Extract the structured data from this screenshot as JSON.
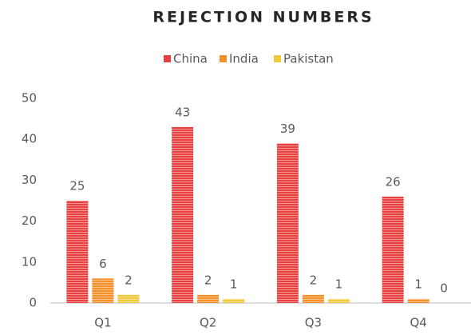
{
  "chart_data": {
    "type": "bar",
    "title": "REJECTION NUMBERS",
    "categories": [
      "Q1",
      "Q2",
      "Q3",
      "Q4"
    ],
    "series": [
      {
        "name": "China",
        "color": "#e8413f",
        "values": [
          25,
          43,
          39,
          26
        ]
      },
      {
        "name": "India",
        "color": "#f5902a",
        "values": [
          6,
          2,
          2,
          1
        ]
      },
      {
        "name": "Pakistan",
        "color": "#f0c93a",
        "values": [
          2,
          1,
          1,
          0
        ]
      }
    ],
    "ylim": [
      0,
      50
    ],
    "yticks": [
      0,
      10,
      20,
      30,
      40,
      50
    ],
    "legend": "top"
  }
}
